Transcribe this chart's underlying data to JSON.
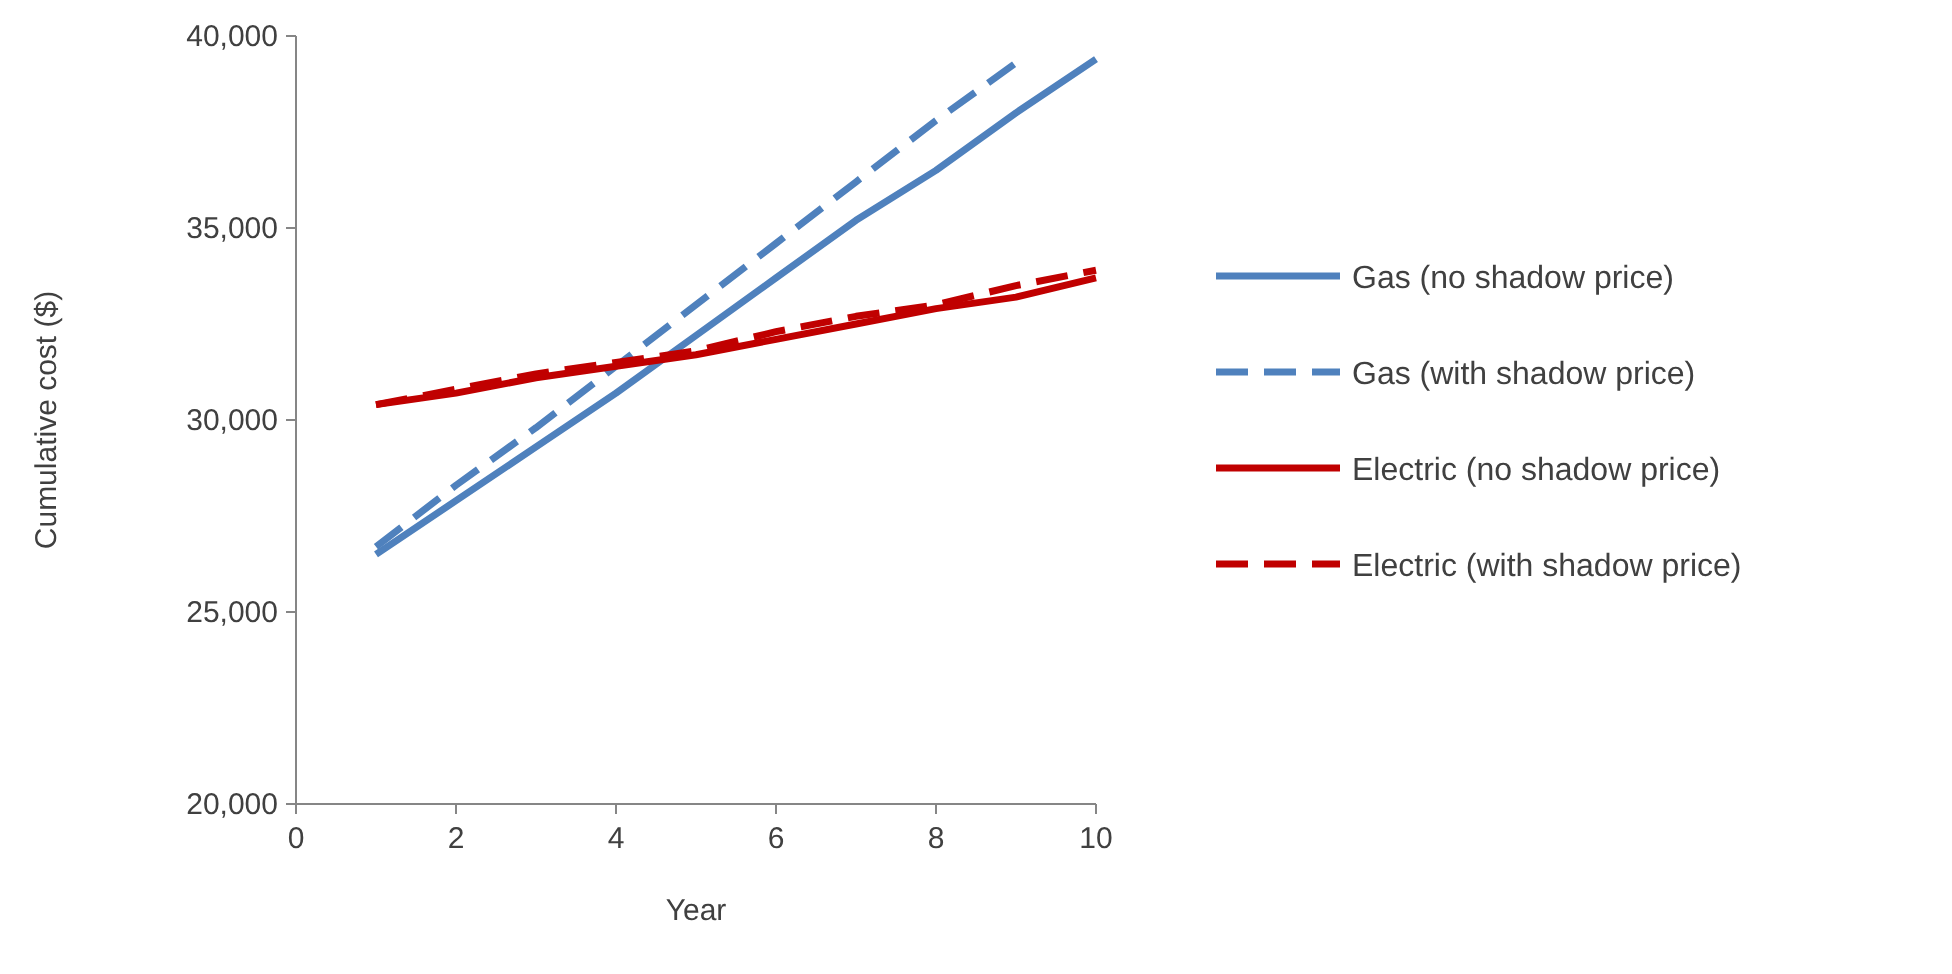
{
  "chart_data": {
    "type": "line",
    "xlabel": "Year",
    "ylabel": "Cumulative cost ($)",
    "x": [
      1,
      2,
      3,
      4,
      5,
      6,
      7,
      8,
      9,
      10
    ],
    "series": [
      {
        "name": "Gas (no shadow price)",
        "color": "#4f81bd",
        "line_style": "solid",
        "values": [
          26500,
          27900,
          29300,
          30700,
          32200,
          33700,
          35200,
          36500,
          38000,
          39400
        ]
      },
      {
        "name": "Gas (with shadow price)",
        "color": "#4f81bd",
        "line_style": "dashed",
        "values": [
          26700,
          28300,
          29800,
          31400,
          33000,
          34600,
          36200,
          37800,
          39300,
          null
        ]
      },
      {
        "name": "Electric (no shadow price)",
        "color": "#c00000",
        "line_style": "solid",
        "values": [
          30400,
          30700,
          31100,
          31400,
          31700,
          32100,
          32500,
          32900,
          33200,
          33700
        ]
      },
      {
        "name": "Electric (with shadow price)",
        "color": "#c00000",
        "line_style": "dashed",
        "values": [
          30400,
          30800,
          31200,
          31500,
          31800,
          32300,
          32700,
          33000,
          33500,
          33900
        ]
      }
    ],
    "xlim": [
      0,
      10
    ],
    "xticks": [
      0,
      2,
      4,
      6,
      8,
      10
    ],
    "ylim": [
      20000,
      40000
    ],
    "yticks": [
      {
        "value": 20000,
        "label": "20,000"
      },
      {
        "value": 25000,
        "label": "25,000"
      },
      {
        "value": 30000,
        "label": "30,000"
      },
      {
        "value": 35000,
        "label": "35,000"
      },
      {
        "value": 40000,
        "label": "40,000"
      }
    ],
    "grid": false,
    "legend": "right"
  }
}
